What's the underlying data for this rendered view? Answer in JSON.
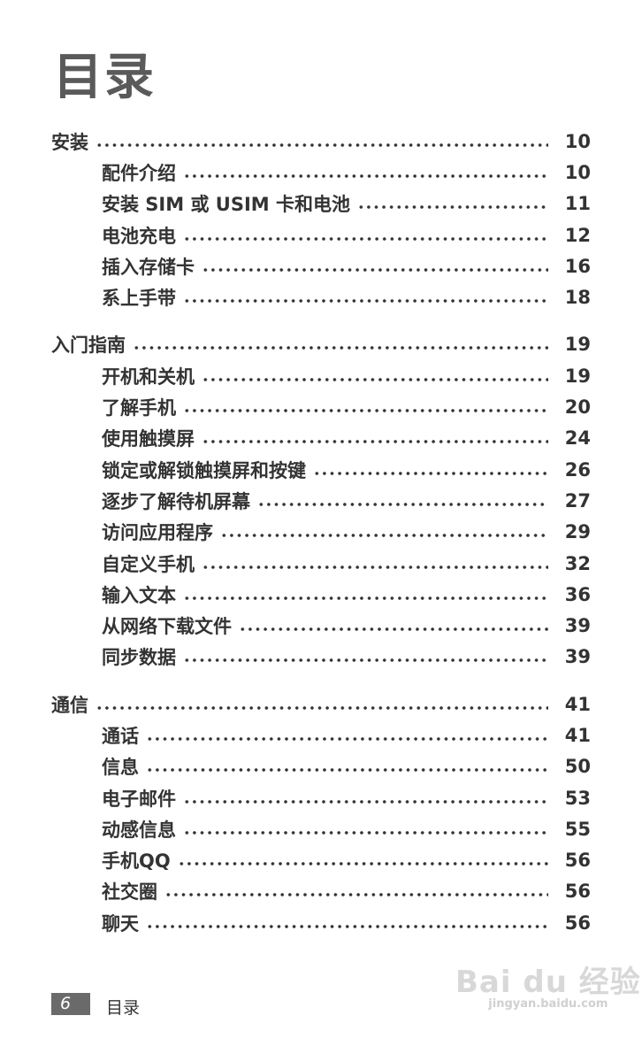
{
  "title": "目录",
  "sections": [
    {
      "label": "安装",
      "page": "10",
      "items": [
        {
          "label": "配件介绍",
          "page": "10"
        },
        {
          "label": "安装 SIM 或 USIM 卡和电池",
          "page": "11"
        },
        {
          "label": "电池充电",
          "page": "12"
        },
        {
          "label": "插入存储卡",
          "page": "16"
        },
        {
          "label": "系上手带",
          "page": "18"
        }
      ]
    },
    {
      "label": "入门指南",
      "page": "19",
      "items": [
        {
          "label": "开机和关机",
          "page": "19"
        },
        {
          "label": "了解手机",
          "page": "20"
        },
        {
          "label": "使用触摸屏",
          "page": "24"
        },
        {
          "label": "锁定或解锁触摸屏和按键",
          "page": "26"
        },
        {
          "label": "逐步了解待机屏幕",
          "page": "27"
        },
        {
          "label": "访问应用程序",
          "page": "29"
        },
        {
          "label": "自定义手机",
          "page": "32"
        },
        {
          "label": "输入文本",
          "page": "36"
        },
        {
          "label": "从网络下载文件",
          "page": "39"
        },
        {
          "label": "同步数据",
          "page": "39"
        }
      ]
    },
    {
      "label": "通信",
      "page": "41",
      "items": [
        {
          "label": "通话",
          "page": "41"
        },
        {
          "label": "信息",
          "page": "50"
        },
        {
          "label": "电子邮件",
          "page": "53"
        },
        {
          "label": "动感信息",
          "page": "55"
        },
        {
          "label": "手机QQ",
          "page": "56"
        },
        {
          "label": "社交圈",
          "page": "56"
        },
        {
          "label": "聊天",
          "page": "56"
        }
      ]
    }
  ],
  "footer": {
    "page_number": "6",
    "label": "目录"
  },
  "watermark": {
    "brand": "Bai du 经验",
    "url": "jingyan.baidu.com"
  }
}
